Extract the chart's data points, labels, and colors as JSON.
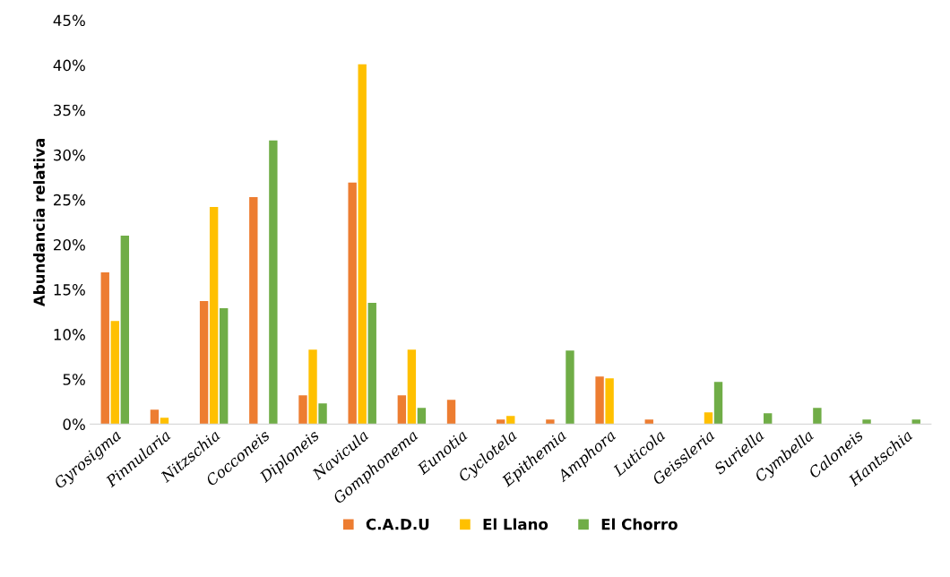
{
  "chart_data": {
    "type": "bar",
    "ylabel": "Abundancia relativa",
    "categories": [
      "Gyrosigma",
      "Pinnularia",
      "Nitzschia",
      "Cocconeis",
      "Diploneis",
      "Navicula",
      "Gomphonema",
      "Eunotia",
      "Cyclotela",
      "Epithemia",
      "Amphora",
      "Luticola",
      "Geissleria",
      "Suriella",
      "Cymbella",
      "Caloneis",
      "Hantschia"
    ],
    "series": [
      {
        "name": "C.A.D.U",
        "color": "#ed7d31",
        "values": [
          16.9,
          1.6,
          13.7,
          25.3,
          3.2,
          26.9,
          3.2,
          2.7,
          0.5,
          0.5,
          5.3,
          0.5,
          0,
          0,
          0,
          0,
          0
        ]
      },
      {
        "name": "El Llano",
        "color": "#ffc000",
        "values": [
          11.5,
          0.7,
          24.2,
          0,
          8.3,
          40.1,
          8.3,
          0,
          0.9,
          0,
          5.1,
          0,
          1.3,
          0,
          0,
          0,
          0
        ]
      },
      {
        "name": "El Chorro",
        "color": "#70ad47",
        "values": [
          21.0,
          0,
          12.9,
          31.6,
          2.3,
          13.5,
          1.8,
          0,
          0,
          8.2,
          0,
          0,
          4.7,
          1.2,
          1.8,
          0.5,
          0.5
        ]
      }
    ],
    "ylim": [
      0,
      45
    ],
    "yticks": [
      {
        "value": 0,
        "label": "0%"
      },
      {
        "value": 5,
        "label": "5%"
      },
      {
        "value": 10,
        "label": "10%"
      },
      {
        "value": 15,
        "label": "15%"
      },
      {
        "value": 20,
        "label": "20%"
      },
      {
        "value": 25,
        "label": "25%"
      },
      {
        "value": 30,
        "label": "30%"
      },
      {
        "value": 35,
        "label": "35%"
      },
      {
        "value": 40,
        "label": "40%"
      },
      {
        "value": 45,
        "label": "45%"
      }
    ],
    "grid": false,
    "legend": "bottom"
  }
}
